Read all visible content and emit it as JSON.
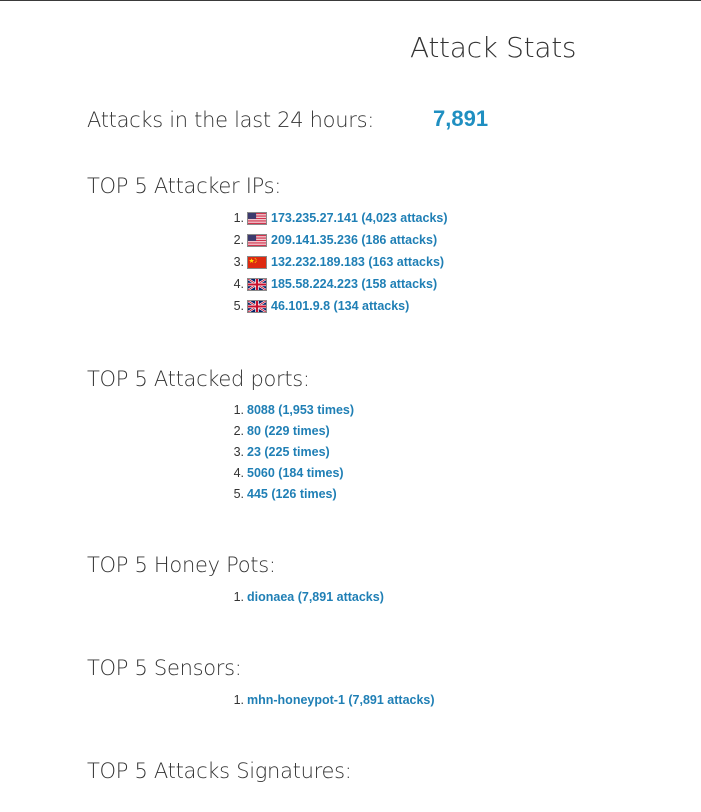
{
  "page": {
    "title": "Attack Stats",
    "attacks_label": "Attacks in the last 24 hours:",
    "attacks_count": "7,891"
  },
  "sections": {
    "ips": {
      "heading": "TOP 5 Attacker IPs:",
      "items": [
        {
          "num": "1.",
          "flag": "us-flag-icon",
          "text": "173.235.27.141 (4,023 attacks)"
        },
        {
          "num": "2.",
          "flag": "us-flag-icon",
          "text": "209.141.35.236 (186 attacks)"
        },
        {
          "num": "3.",
          "flag": "cn-flag-icon",
          "text": "132.232.189.183 (163 attacks)"
        },
        {
          "num": "4.",
          "flag": "gb-flag-icon",
          "text": "185.58.224.223 (158 attacks)"
        },
        {
          "num": "5.",
          "flag": "gb-flag-icon",
          "text": "46.101.9.8 (134 attacks)"
        }
      ]
    },
    "ports": {
      "heading": "TOP 5 Attacked ports:",
      "items": [
        {
          "num": "1.",
          "text": "8088 (1,953 times)"
        },
        {
          "num": "2.",
          "text": "80 (229 times)"
        },
        {
          "num": "3.",
          "text": "23 (225 times)"
        },
        {
          "num": "4.",
          "text": "5060 (184 times)"
        },
        {
          "num": "5.",
          "text": "445 (126 times)"
        }
      ]
    },
    "pots": {
      "heading": "TOP 5 Honey Pots:",
      "items": [
        {
          "num": "1.",
          "text": "dionaea (7,891 attacks)"
        }
      ]
    },
    "sensors": {
      "heading": "TOP 5 Sensors:",
      "items": [
        {
          "num": "1.",
          "text": "mhn-honeypot-1 (7,891 attacks)"
        }
      ]
    },
    "signatures": {
      "heading": "TOP 5 Attacks Signatures:"
    }
  },
  "colors": {
    "link": "#1f7fb5",
    "count": "#1f8fc1",
    "text": "#333333"
  }
}
